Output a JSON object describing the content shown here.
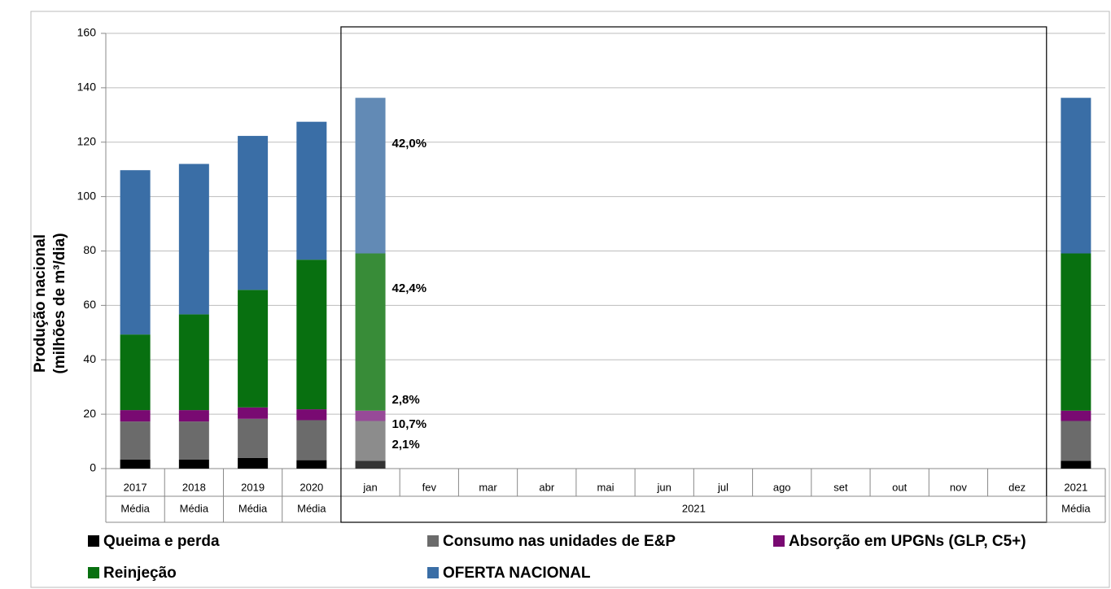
{
  "chart_data": {
    "type": "stacked_bar",
    "y_label": [
      "Produção nacional",
      "(milhões de m³/dia)"
    ],
    "categories": [
      "2017",
      "2018",
      "2019",
      "2020",
      "jan",
      "fev",
      "mar",
      "abr",
      "mai",
      "jun",
      "jul",
      "ago",
      "set",
      "out",
      "nov",
      "dez",
      "2021"
    ],
    "category_groups": [
      "Média",
      "Média",
      "Média",
      "Média",
      "2021",
      null,
      null,
      null,
      null,
      null,
      null,
      null,
      null,
      null,
      null,
      null,
      "Média"
    ],
    "highlight": "jan",
    "series": [
      {
        "name": "Queima e perda",
        "color": "#000000",
        "highlight_color": "#333333",
        "values": [
          3.3,
          3.3,
          3.9,
          3.1,
          2.9,
          null,
          null,
          null,
          null,
          null,
          null,
          null,
          null,
          null,
          null,
          null,
          2.9
        ]
      },
      {
        "name": "Consumo nas unidades de E&P",
        "color": "#6b6b6b",
        "highlight_color": "#8c8c8c",
        "values": [
          14.0,
          14.0,
          14.4,
          14.7,
          14.6,
          null,
          null,
          null,
          null,
          null,
          null,
          null,
          null,
          null,
          null,
          null,
          14.6
        ]
      },
      {
        "name": "Absorção em UPGNs (GLP, C5+)",
        "color": "#790a72",
        "highlight_color": "#974a98",
        "values": [
          4.2,
          4.2,
          4.2,
          4.0,
          3.8,
          null,
          null,
          null,
          null,
          null,
          null,
          null,
          null,
          null,
          null,
          null,
          3.8
        ]
      },
      {
        "name": "Reinjeção",
        "color": "#087010",
        "highlight_color": "#388c38",
        "values": [
          27.8,
          35.2,
          43.2,
          55.0,
          57.8,
          null,
          null,
          null,
          null,
          null,
          null,
          null,
          null,
          null,
          null,
          null,
          57.8
        ]
      },
      {
        "name": "OFERTA NACIONAL",
        "color": "#3a6ea6",
        "highlight_color": "#628ab5",
        "values": [
          60.4,
          55.3,
          56.6,
          50.7,
          57.2,
          null,
          null,
          null,
          null,
          null,
          null,
          null,
          null,
          null,
          null,
          null,
          57.2
        ]
      }
    ],
    "annotations": [
      "2,1%",
      "10,7%",
      "2,8%",
      "42,4%",
      "42,0%"
    ],
    "ylim": [
      0,
      160
    ],
    "yticks": [
      0,
      20,
      40,
      60,
      80,
      100,
      120,
      140,
      160
    ],
    "grid": true
  }
}
